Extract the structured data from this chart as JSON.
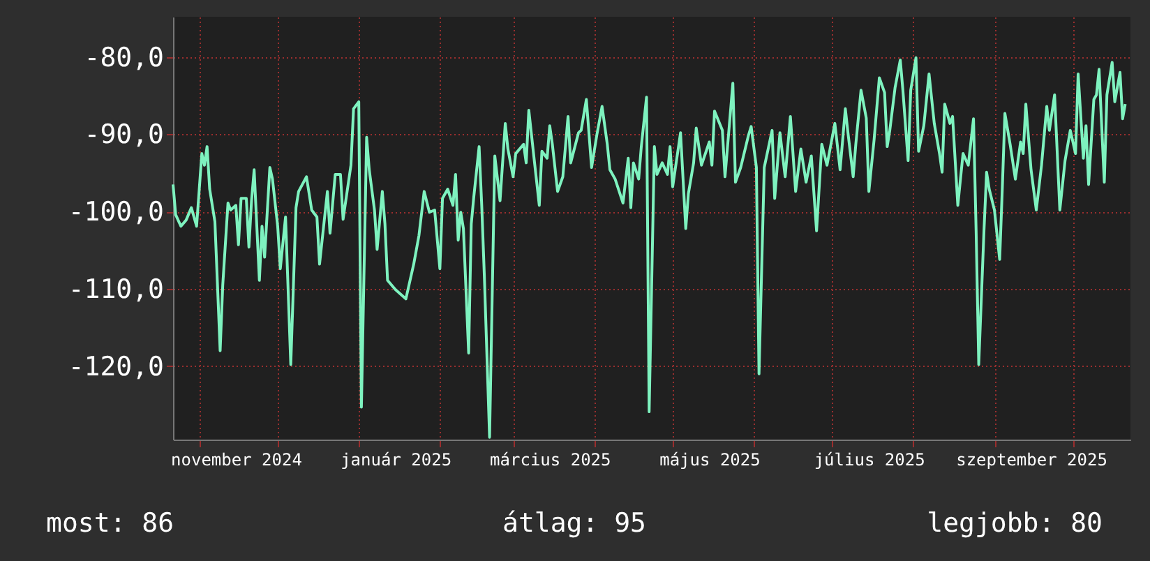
{
  "chart_data": {
    "type": "line",
    "series": [
      {
        "color": "#7ef2bf",
        "x": [
          "2024-10-22",
          "2024-10-23",
          "2024-10-25",
          "2024-10-27",
          "2024-10-29",
          "2024-10-31",
          "2024-11-02",
          "2024-11-03",
          "2024-11-04",
          "2024-11-05",
          "2024-11-07",
          "2024-11-09",
          "2024-11-10",
          "2024-11-12",
          "2024-11-13",
          "2024-11-15",
          "2024-11-16",
          "2024-11-17",
          "2024-11-19",
          "2024-11-20",
          "2024-11-21",
          "2024-11-22",
          "2024-11-24",
          "2024-11-25",
          "2024-11-26",
          "2024-11-28",
          "2024-11-29",
          "2024-12-01",
          "2024-12-02",
          "2024-12-04",
          "2024-12-06",
          "2024-12-08",
          "2024-12-09",
          "2024-12-12",
          "2024-12-14",
          "2024-12-16",
          "2024-12-17",
          "2024-12-20",
          "2024-12-21",
          "2024-12-23",
          "2024-12-25",
          "2024-12-26",
          "2024-12-29",
          "2024-12-30",
          "2025-01-01",
          "2025-01-02",
          "2025-01-04",
          "2025-01-05",
          "2025-01-07",
          "2025-01-08",
          "2025-01-10",
          "2025-01-11",
          "2025-01-12",
          "2025-01-15",
          "2025-01-19",
          "2025-01-22",
          "2025-01-24",
          "2025-01-26",
          "2025-01-28",
          "2025-01-30",
          "2025-02-01",
          "2025-02-02",
          "2025-02-04",
          "2025-02-06",
          "2025-02-07",
          "2025-02-08",
          "2025-02-09",
          "2025-02-10",
          "2025-02-12",
          "2025-02-13",
          "2025-02-14",
          "2025-02-16",
          "2025-02-17",
          "2025-02-18",
          "2025-02-20",
          "2025-02-22",
          "2025-02-24",
          "2025-02-26",
          "2025-02-27",
          "2025-03-01",
          "2025-03-02",
          "2025-03-05",
          "2025-03-06",
          "2025-03-07",
          "2025-03-09",
          "2025-03-11",
          "2025-03-12",
          "2025-03-14",
          "2025-03-15",
          "2025-03-16",
          "2025-03-18",
          "2025-03-20",
          "2025-03-22",
          "2025-03-23",
          "2025-03-26",
          "2025-03-27",
          "2025-03-29",
          "2025-03-31",
          "2025-04-02",
          "2025-04-04",
          "2025-04-06",
          "2025-04-07",
          "2025-04-09",
          "2025-04-12",
          "2025-04-14",
          "2025-04-15",
          "2025-04-16",
          "2025-04-18",
          "2025-04-19",
          "2025-04-21",
          "2025-04-22",
          "2025-04-24",
          "2025-04-25",
          "2025-04-27",
          "2025-04-29",
          "2025-04-30",
          "2025-05-01",
          "2025-05-04",
          "2025-05-06",
          "2025-05-07",
          "2025-05-09",
          "2025-05-10",
          "2025-05-12",
          "2025-05-15",
          "2025-05-16",
          "2025-05-17",
          "2025-05-20",
          "2025-05-21",
          "2025-05-24",
          "2025-05-25",
          "2025-05-27",
          "2025-05-30",
          "2025-05-31",
          "2025-06-02",
          "2025-06-03",
          "2025-06-05",
          "2025-06-08",
          "2025-06-09",
          "2025-06-11",
          "2025-06-13",
          "2025-06-15",
          "2025-06-17",
          "2025-06-19",
          "2025-06-21",
          "2025-06-23",
          "2025-06-25",
          "2025-06-27",
          "2025-06-29",
          "2025-07-02",
          "2025-07-04",
          "2025-07-06",
          "2025-07-07",
          "2025-07-09",
          "2025-07-10",
          "2025-07-12",
          "2025-07-14",
          "2025-07-15",
          "2025-07-17",
          "2025-07-19",
          "2025-07-21",
          "2025-07-22",
          "2025-07-23",
          "2025-07-25",
          "2025-07-27",
          "2025-07-28",
          "2025-07-30",
          "2025-07-31",
          "2025-08-02",
          "2025-08-03",
          "2025-08-05",
          "2025-08-07",
          "2025-08-09",
          "2025-08-11",
          "2025-08-12",
          "2025-08-13",
          "2025-08-15",
          "2025-08-16",
          "2025-08-18",
          "2025-08-20",
          "2025-08-22",
          "2025-08-24",
          "2025-08-25",
          "2025-08-26",
          "2025-08-28",
          "2025-08-29",
          "2025-08-30",
          "2025-09-01",
          "2025-09-03",
          "2025-09-04",
          "2025-09-05",
          "2025-09-07",
          "2025-09-09",
          "2025-09-11",
          "2025-09-12",
          "2025-09-13",
          "2025-09-15",
          "2025-09-17",
          "2025-09-19",
          "2025-09-21",
          "2025-09-22",
          "2025-09-24",
          "2025-09-26",
          "2025-09-28",
          "2025-09-30",
          "2025-10-02",
          "2025-10-03",
          "2025-10-05",
          "2025-10-06",
          "2025-10-07",
          "2025-10-09",
          "2025-10-10",
          "2025-10-11",
          "2025-10-13",
          "2025-10-14",
          "2025-10-16",
          "2025-10-17",
          "2025-10-19",
          "2025-10-20",
          "2025-10-21"
        ],
        "values": [
          -96.5,
          -100.4,
          -101.9,
          -101.1,
          -99.5,
          -101.9,
          -92.5,
          -94.0,
          -91.6,
          -97.1,
          -101.3,
          -118.0,
          -109.5,
          -98.9,
          -99.8,
          -99.2,
          -104.3,
          -98.3,
          -98.3,
          -104.6,
          -98.6,
          -94.6,
          -108.9,
          -101.9,
          -105.9,
          -94.3,
          -95.8,
          -101.9,
          -107.4,
          -100.7,
          -119.8,
          -99.5,
          -97.4,
          -95.5,
          -99.8,
          -100.7,
          -106.8,
          -97.4,
          -102.8,
          -95.2,
          -95.2,
          -101.0,
          -94.0,
          -86.7,
          -85.8,
          -125.3,
          -90.4,
          -94.6,
          -99.8,
          -104.9,
          -97.4,
          -101.6,
          -108.9,
          -110.1,
          -111.3,
          -106.8,
          -103.1,
          -97.4,
          -100.1,
          -99.8,
          -107.4,
          -98.3,
          -97.1,
          -99.2,
          -95.2,
          -103.7,
          -100.1,
          -102.2,
          -118.3,
          -101.6,
          -98.0,
          -91.6,
          -99.2,
          -108.3,
          -129.2,
          -92.8,
          -98.6,
          -88.6,
          -91.9,
          -95.5,
          -92.5,
          -91.3,
          -93.7,
          -86.9,
          -93.1,
          -99.2,
          -92.2,
          -93.1,
          -88.9,
          -91.3,
          -97.4,
          -95.5,
          -87.7,
          -93.7,
          -89.8,
          -89.5,
          -85.5,
          -94.3,
          -90.1,
          -86.4,
          -91.3,
          -94.6,
          -95.8,
          -98.9,
          -93.1,
          -99.5,
          -93.7,
          -95.8,
          -91.6,
          -85.2,
          -125.9,
          -91.6,
          -95.2,
          -93.7,
          -95.2,
          -91.6,
          -96.8,
          -89.8,
          -102.2,
          -97.7,
          -93.7,
          -89.2,
          -94.0,
          -91.0,
          -94.0,
          -87.0,
          -89.5,
          -95.5,
          -83.4,
          -96.2,
          -94.3,
          -90.1,
          -89.0,
          -94.3,
          -121.0,
          -94.3,
          -89.5,
          -98.3,
          -89.8,
          -95.5,
          -87.7,
          -97.4,
          -91.9,
          -96.2,
          -92.8,
          -102.5,
          -91.3,
          -94.0,
          -88.6,
          -94.6,
          -86.7,
          -89.8,
          -95.5,
          -91.3,
          -84.3,
          -87.9,
          -97.4,
          -90.7,
          -82.7,
          -84.6,
          -91.6,
          -89.5,
          -84.0,
          -80.4,
          -84.3,
          -93.4,
          -84.3,
          -80.1,
          -92.2,
          -88.9,
          -82.2,
          -88.6,
          -92.5,
          -94.9,
          -86.1,
          -88.6,
          -87.7,
          -99.2,
          -92.5,
          -94.0,
          -88.0,
          -102.5,
          -119.8,
          -102.5,
          -94.9,
          -97.1,
          -99.8,
          -106.2,
          -97.1,
          -87.3,
          -91.3,
          -95.8,
          -91.0,
          -92.5,
          -86.1,
          -94.6,
          -99.8,
          -94.0,
          -86.4,
          -89.5,
          -84.9,
          -99.8,
          -93.4,
          -89.5,
          -92.5,
          -82.2,
          -93.1,
          -88.9,
          -96.5,
          -85.5,
          -84.9,
          -81.6,
          -96.2,
          -84.9,
          -80.7,
          -85.8,
          -82.0,
          -88.0,
          -86.1
        ]
      }
    ],
    "xlim": [
      "2024-10-22",
      "2025-10-23"
    ],
    "xticks": [
      {
        "value": "2024-11-01",
        "label": null
      },
      {
        "value": "2024-11-15",
        "label": "november 2024"
      },
      {
        "value": "2024-12-01",
        "label": null
      },
      {
        "value": "2025-01-01",
        "label": null
      },
      {
        "value": "2025-01-15",
        "label": "január 2025"
      },
      {
        "value": "2025-02-01",
        "label": null
      },
      {
        "value": "2025-03-01",
        "label": null
      },
      {
        "value": "2025-03-15",
        "label": "március 2025"
      },
      {
        "value": "2025-04-01",
        "label": null
      },
      {
        "value": "2025-05-01",
        "label": null
      },
      {
        "value": "2025-05-15",
        "label": "május 2025"
      },
      {
        "value": "2025-06-01",
        "label": null
      },
      {
        "value": "2025-07-01",
        "label": null
      },
      {
        "value": "2025-07-15",
        "label": "július 2025"
      },
      {
        "value": "2025-08-01",
        "label": null
      },
      {
        "value": "2025-09-01",
        "label": null
      },
      {
        "value": "2025-09-15",
        "label": "szeptember 2025"
      },
      {
        "value": "2025-10-01",
        "label": null
      }
    ],
    "ylim": [
      -129.5,
      -74.8
    ],
    "yticks": [
      {
        "value": -80,
        "label": "-80,0"
      },
      {
        "value": -90,
        "label": "-90,0"
      },
      {
        "value": -100,
        "label": "-100,0"
      },
      {
        "value": -110,
        "label": "-110,0"
      },
      {
        "value": -120,
        "label": "-120,0"
      }
    ],
    "grid": true,
    "annotations": [
      "most: 86",
      "átlag: 95",
      "legjobb: 80"
    ]
  }
}
